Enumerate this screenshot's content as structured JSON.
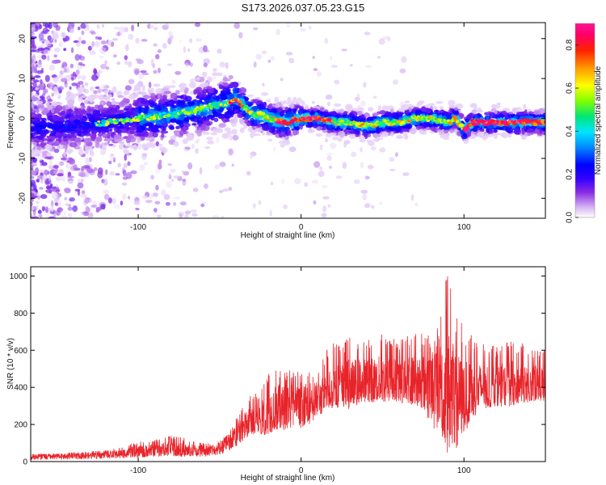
{
  "figure": {
    "title": "S173.2026.037.05.23.G15"
  },
  "chart_data": [
    {
      "type": "heatmap",
      "title": "",
      "xlabel": "Height of straight line (km)",
      "ylabel": "Frequency (Hz)",
      "xlim": [
        -166,
        150
      ],
      "ylim": [
        -25,
        24
      ],
      "xticks": [
        -100,
        0,
        100
      ],
      "yticks": [
        -20,
        -10,
        0,
        10,
        20
      ],
      "grid": false,
      "colorbar": {
        "label": "Normalized spectral amplitude",
        "range": [
          0.0,
          0.9
        ],
        "ticks": [
          0.0,
          0.2,
          0.4,
          0.6,
          0.8
        ],
        "colormap": [
          "#ffffff",
          "#d8b8f4",
          "#8a2be2",
          "#3300ff",
          "#0000ff",
          "#0088ff",
          "#00e5ff",
          "#00e676",
          "#7fff00",
          "#ffff00",
          "#ff9900",
          "#ff2200",
          "#ff0066",
          "#ff1493"
        ]
      },
      "ridge": {
        "description": "dominant frequency ridge (approximate, read from figure)",
        "x": [
          -166,
          -140,
          -120,
          -100,
          -80,
          -65,
          -55,
          -45,
          -40,
          -35,
          -30,
          -25,
          -20,
          -10,
          0,
          10,
          20,
          30,
          40,
          50,
          60,
          70,
          80,
          90,
          95,
          100,
          105,
          110,
          120,
          130,
          140,
          150
        ],
        "y": [
          -2,
          -2,
          -1,
          0,
          1,
          2,
          3,
          4,
          5,
          3,
          1,
          1,
          0,
          -1,
          0,
          0,
          -1,
          -1,
          -2,
          -1,
          -1,
          0,
          0,
          -1,
          0,
          -3,
          -1,
          -1,
          -1,
          -1,
          -1,
          -1
        ]
      }
    },
    {
      "type": "line",
      "title": "",
      "xlabel": "Height of straight line (km)",
      "ylabel": "SNR (10 * v/v)",
      "xlim": [
        -166,
        150
      ],
      "ylim": [
        0,
        1050
      ],
      "xticks": [
        -100,
        0,
        100
      ],
      "yticks": [
        0,
        200,
        400,
        600,
        800,
        1000
      ],
      "grid": false,
      "line_color": "#e8242b",
      "series": [
        {
          "envelope_x": [
            -166,
            -140,
            -120,
            -110,
            -100,
            -90,
            -80,
            -70,
            -60,
            -50,
            -45,
            -40,
            -35,
            -30,
            -25,
            -20,
            -15,
            -10,
            -5,
            0,
            5,
            10,
            15,
            20,
            25,
            30,
            40,
            50,
            60,
            70,
            80,
            85,
            90,
            95,
            100,
            105,
            110,
            120,
            130,
            140,
            150
          ],
          "envelope_mean": [
            25,
            30,
            38,
            45,
            55,
            62,
            70,
            60,
            60,
            70,
            95,
            150,
            190,
            230,
            230,
            260,
            300,
            300,
            320,
            290,
            330,
            340,
            360,
            410,
            410,
            420,
            440,
            440,
            440,
            440,
            430,
            420,
            380,
            330,
            350,
            380,
            400,
            410,
            420,
            415,
            420
          ],
          "envelope_low": [
            10,
            12,
            15,
            18,
            20,
            25,
            28,
            25,
            25,
            35,
            50,
            80,
            110,
            140,
            140,
            150,
            160,
            170,
            180,
            170,
            200,
            230,
            280,
            300,
            290,
            310,
            320,
            320,
            310,
            300,
            200,
            130,
            60,
            50,
            170,
            250,
            280,
            300,
            300,
            320,
            330
          ],
          "envelope_high": [
            40,
            50,
            60,
            80,
            110,
            120,
            140,
            130,
            100,
            110,
            150,
            250,
            320,
            380,
            380,
            490,
            500,
            480,
            500,
            480,
            500,
            490,
            600,
            640,
            640,
            700,
            650,
            700,
            650,
            700,
            690,
            750,
            1050,
            800,
            750,
            700,
            650,
            620,
            660,
            620,
            620
          ]
        }
      ]
    }
  ]
}
